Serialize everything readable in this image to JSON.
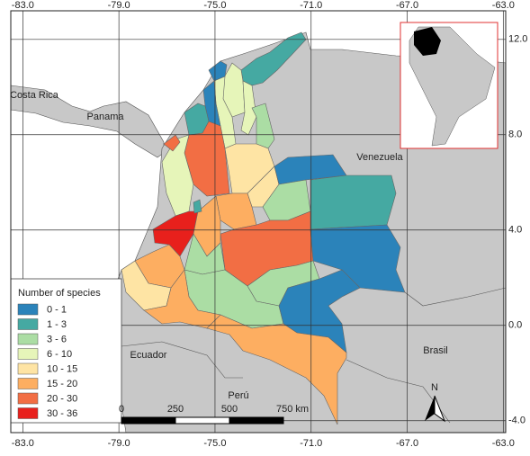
{
  "map": {
    "xlim": [
      -83.5,
      -62.9
    ],
    "ylim": [
      -4.5,
      13.2
    ],
    "longitude_ticks": [
      {
        "value": -83,
        "label": "-83.0"
      },
      {
        "value": -79,
        "label": "-79.0"
      },
      {
        "value": -75,
        "label": "-75.0"
      },
      {
        "value": -71,
        "label": "-71.0"
      },
      {
        "value": -67,
        "label": "-67.0"
      },
      {
        "value": -63,
        "label": "-63.0"
      }
    ],
    "latitude_ticks": [
      {
        "value": 12,
        "label": "12.0"
      },
      {
        "value": 8,
        "label": "8.0"
      },
      {
        "value": 4,
        "label": "4.0"
      },
      {
        "value": 0,
        "label": "0.0"
      },
      {
        "value": -4,
        "label": "-4.0"
      }
    ],
    "countries": [
      "Costa Rica",
      "Panama",
      "Venezuela",
      "Ecuador",
      "Perú",
      "Brasil"
    ],
    "legend": {
      "title": "Number of species",
      "classes": [
        {
          "label": "0 - 1",
          "color": "#2b83ba"
        },
        {
          "label": "1 - 3",
          "color": "#45a9a2"
        },
        {
          "label": "3 - 6",
          "color": "#abdda4"
        },
        {
          "label": "6 - 10",
          "color": "#e6f5b9"
        },
        {
          "label": "10 - 15",
          "color": "#fee4a4"
        },
        {
          "label": "15 - 20",
          "color": "#fdae61"
        },
        {
          "label": "20 - 30",
          "color": "#f26e44"
        },
        {
          "label": "30 - 36",
          "color": "#e8201c"
        }
      ]
    },
    "scale_bar": {
      "labels": [
        "0",
        "250",
        "500",
        "750 km"
      ]
    },
    "north_label": "N"
  }
}
